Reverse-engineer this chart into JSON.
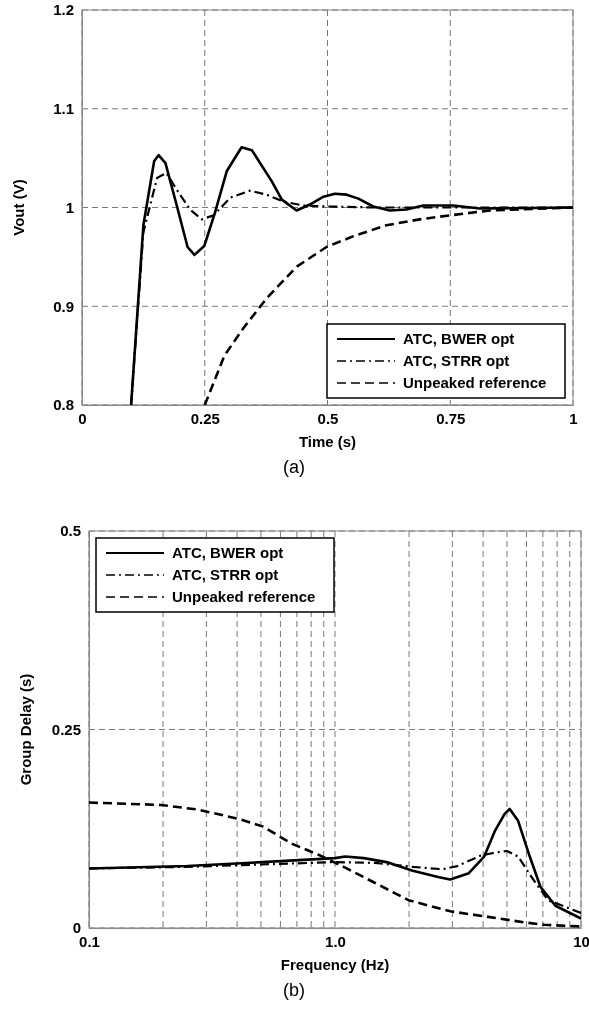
{
  "chart_data": [
    {
      "type": "line",
      "xlabel": "Time (s)",
      "ylabel": "Vout (V)",
      "annotations": [
        "(a)"
      ],
      "xlim": [
        0,
        1
      ],
      "xticks": [
        0,
        0.25,
        0.5,
        0.75,
        1
      ],
      "ylim": [
        0.8,
        1.2
      ],
      "yticks": [
        0.8,
        0.9,
        1,
        1.1,
        1.2
      ],
      "grid": true,
      "legend": "bottom right",
      "series": [
        {
          "name": "ATC, BWER opt",
          "color": "#000000",
          "line_style": "solid",
          "x": [
            0.1,
            0.125,
            0.147,
            0.156,
            0.17,
            0.193,
            0.215,
            0.229,
            0.249,
            0.271,
            0.295,
            0.325,
            0.346,
            0.386,
            0.407,
            0.437,
            0.464,
            0.492,
            0.515,
            0.539,
            0.563,
            0.593,
            0.627,
            0.661,
            0.695,
            0.756,
            0.81,
            1
          ],
          "values": [
            0.8,
            0.982,
            1.047,
            1.053,
            1.045,
            1.002,
            0.96,
            0.952,
            0.961,
            0.995,
            1.037,
            1.061,
            1.058,
            1.027,
            1.008,
            0.997,
            1.003,
            1.011,
            1.014,
            1.013,
            1.009,
            1.001,
            0.997,
            0.998,
            1.002,
            1.002,
            0.999,
            1
          ]
        },
        {
          "name": "ATC, STRR opt",
          "color": "#000000",
          "line_style": "dashdot",
          "x": [
            0.1,
            0.125,
            0.153,
            0.172,
            0.193,
            0.22,
            0.244,
            0.268,
            0.302,
            0.342,
            0.376,
            0.41,
            0.451,
            0.5,
            0.6,
            1
          ],
          "values": [
            0.8,
            0.975,
            1.03,
            1.035,
            1.018,
            0.998,
            0.988,
            0.992,
            1.01,
            1.017,
            1.013,
            1.006,
            1.002,
            1.001,
            1,
            1
          ]
        },
        {
          "name": "Unpeaked reference",
          "color": "#000000",
          "line_style": "dashed",
          "x": [
            0.25,
            0.29,
            0.329,
            0.376,
            0.437,
            0.498,
            0.553,
            0.62,
            0.688,
            0.749,
            0.831,
            1
          ],
          "values": [
            0.8,
            0.85,
            0.878,
            0.908,
            0.94,
            0.96,
            0.971,
            0.982,
            0.988,
            0.992,
            0.997,
            1
          ]
        }
      ]
    },
    {
      "type": "line",
      "xlabel": "Frequency (Hz)",
      "ylabel": "Group Delay (s)",
      "annotations": [
        "(b)"
      ],
      "log": "x",
      "xlim": [
        0.1,
        10
      ],
      "xticks": [
        {
          "value": 0.1,
          "label": "0.1"
        },
        {
          "value": 0.2,
          "label": null
        },
        {
          "value": 0.3,
          "label": null
        },
        {
          "value": 0.4,
          "label": null
        },
        {
          "value": 0.5,
          "label": null
        },
        {
          "value": 0.6,
          "label": null
        },
        {
          "value": 0.7,
          "label": null
        },
        {
          "value": 0.8,
          "label": null
        },
        {
          "value": 0.9,
          "label": null
        },
        {
          "value": 1,
          "label": "1.0"
        },
        {
          "value": 2,
          "label": null
        },
        {
          "value": 3,
          "label": null
        },
        {
          "value": 4,
          "label": null
        },
        {
          "value": 5,
          "label": null
        },
        {
          "value": 6,
          "label": null
        },
        {
          "value": 7,
          "label": null
        },
        {
          "value": 8,
          "label": null
        },
        {
          "value": 9,
          "label": null
        },
        {
          "value": 10,
          "label": "10"
        }
      ],
      "ylim": [
        0,
        0.5
      ],
      "yticks": [
        0,
        0.25,
        0.5
      ],
      "grid": true,
      "legend": "top left",
      "series": [
        {
          "name": "ATC, BWER opt",
          "color": "#000000",
          "line_style": "solid",
          "x": [
            0.1,
            0.251,
            0.507,
            1,
            1.1,
            1.31,
            1.62,
            2.07,
            2.65,
            2.94,
            3.5,
            4.04,
            4.48,
            4.9,
            5.13,
            5.55,
            6.19,
            6.84,
            7.87,
            10
          ],
          "values": [
            0.075,
            0.078,
            0.083,
            0.088,
            0.09,
            0.088,
            0.083,
            0.072,
            0.064,
            0.061,
            0.069,
            0.09,
            0.123,
            0.144,
            0.15,
            0.135,
            0.09,
            0.052,
            0.028,
            0.012
          ]
        },
        {
          "name": "ATC, STRR opt",
          "color": "#000000",
          "line_style": "dashdot",
          "x": [
            0.1,
            0.25,
            0.5,
            1,
            1.45,
            2.07,
            2.74,
            3.14,
            3.9,
            4.48,
            5,
            5.55,
            6.4,
            7.35,
            10
          ],
          "values": [
            0.075,
            0.077,
            0.08,
            0.083,
            0.082,
            0.077,
            0.074,
            0.078,
            0.091,
            0.095,
            0.097,
            0.09,
            0.061,
            0.035,
            0.019
          ]
        },
        {
          "name": "Unpeaked reference",
          "color": "#000000",
          "line_style": "dashed",
          "x": [
            0.1,
            0.196,
            0.279,
            0.411,
            0.507,
            0.67,
            0.86,
            1.1,
            1.45,
            1.99,
            2.94,
            4.2,
            5.9,
            7.1,
            10
          ],
          "values": [
            0.158,
            0.155,
            0.149,
            0.137,
            0.128,
            0.106,
            0.092,
            0.076,
            0.057,
            0.035,
            0.021,
            0.014,
            0.007,
            0.004,
            0.002
          ]
        }
      ]
    }
  ]
}
